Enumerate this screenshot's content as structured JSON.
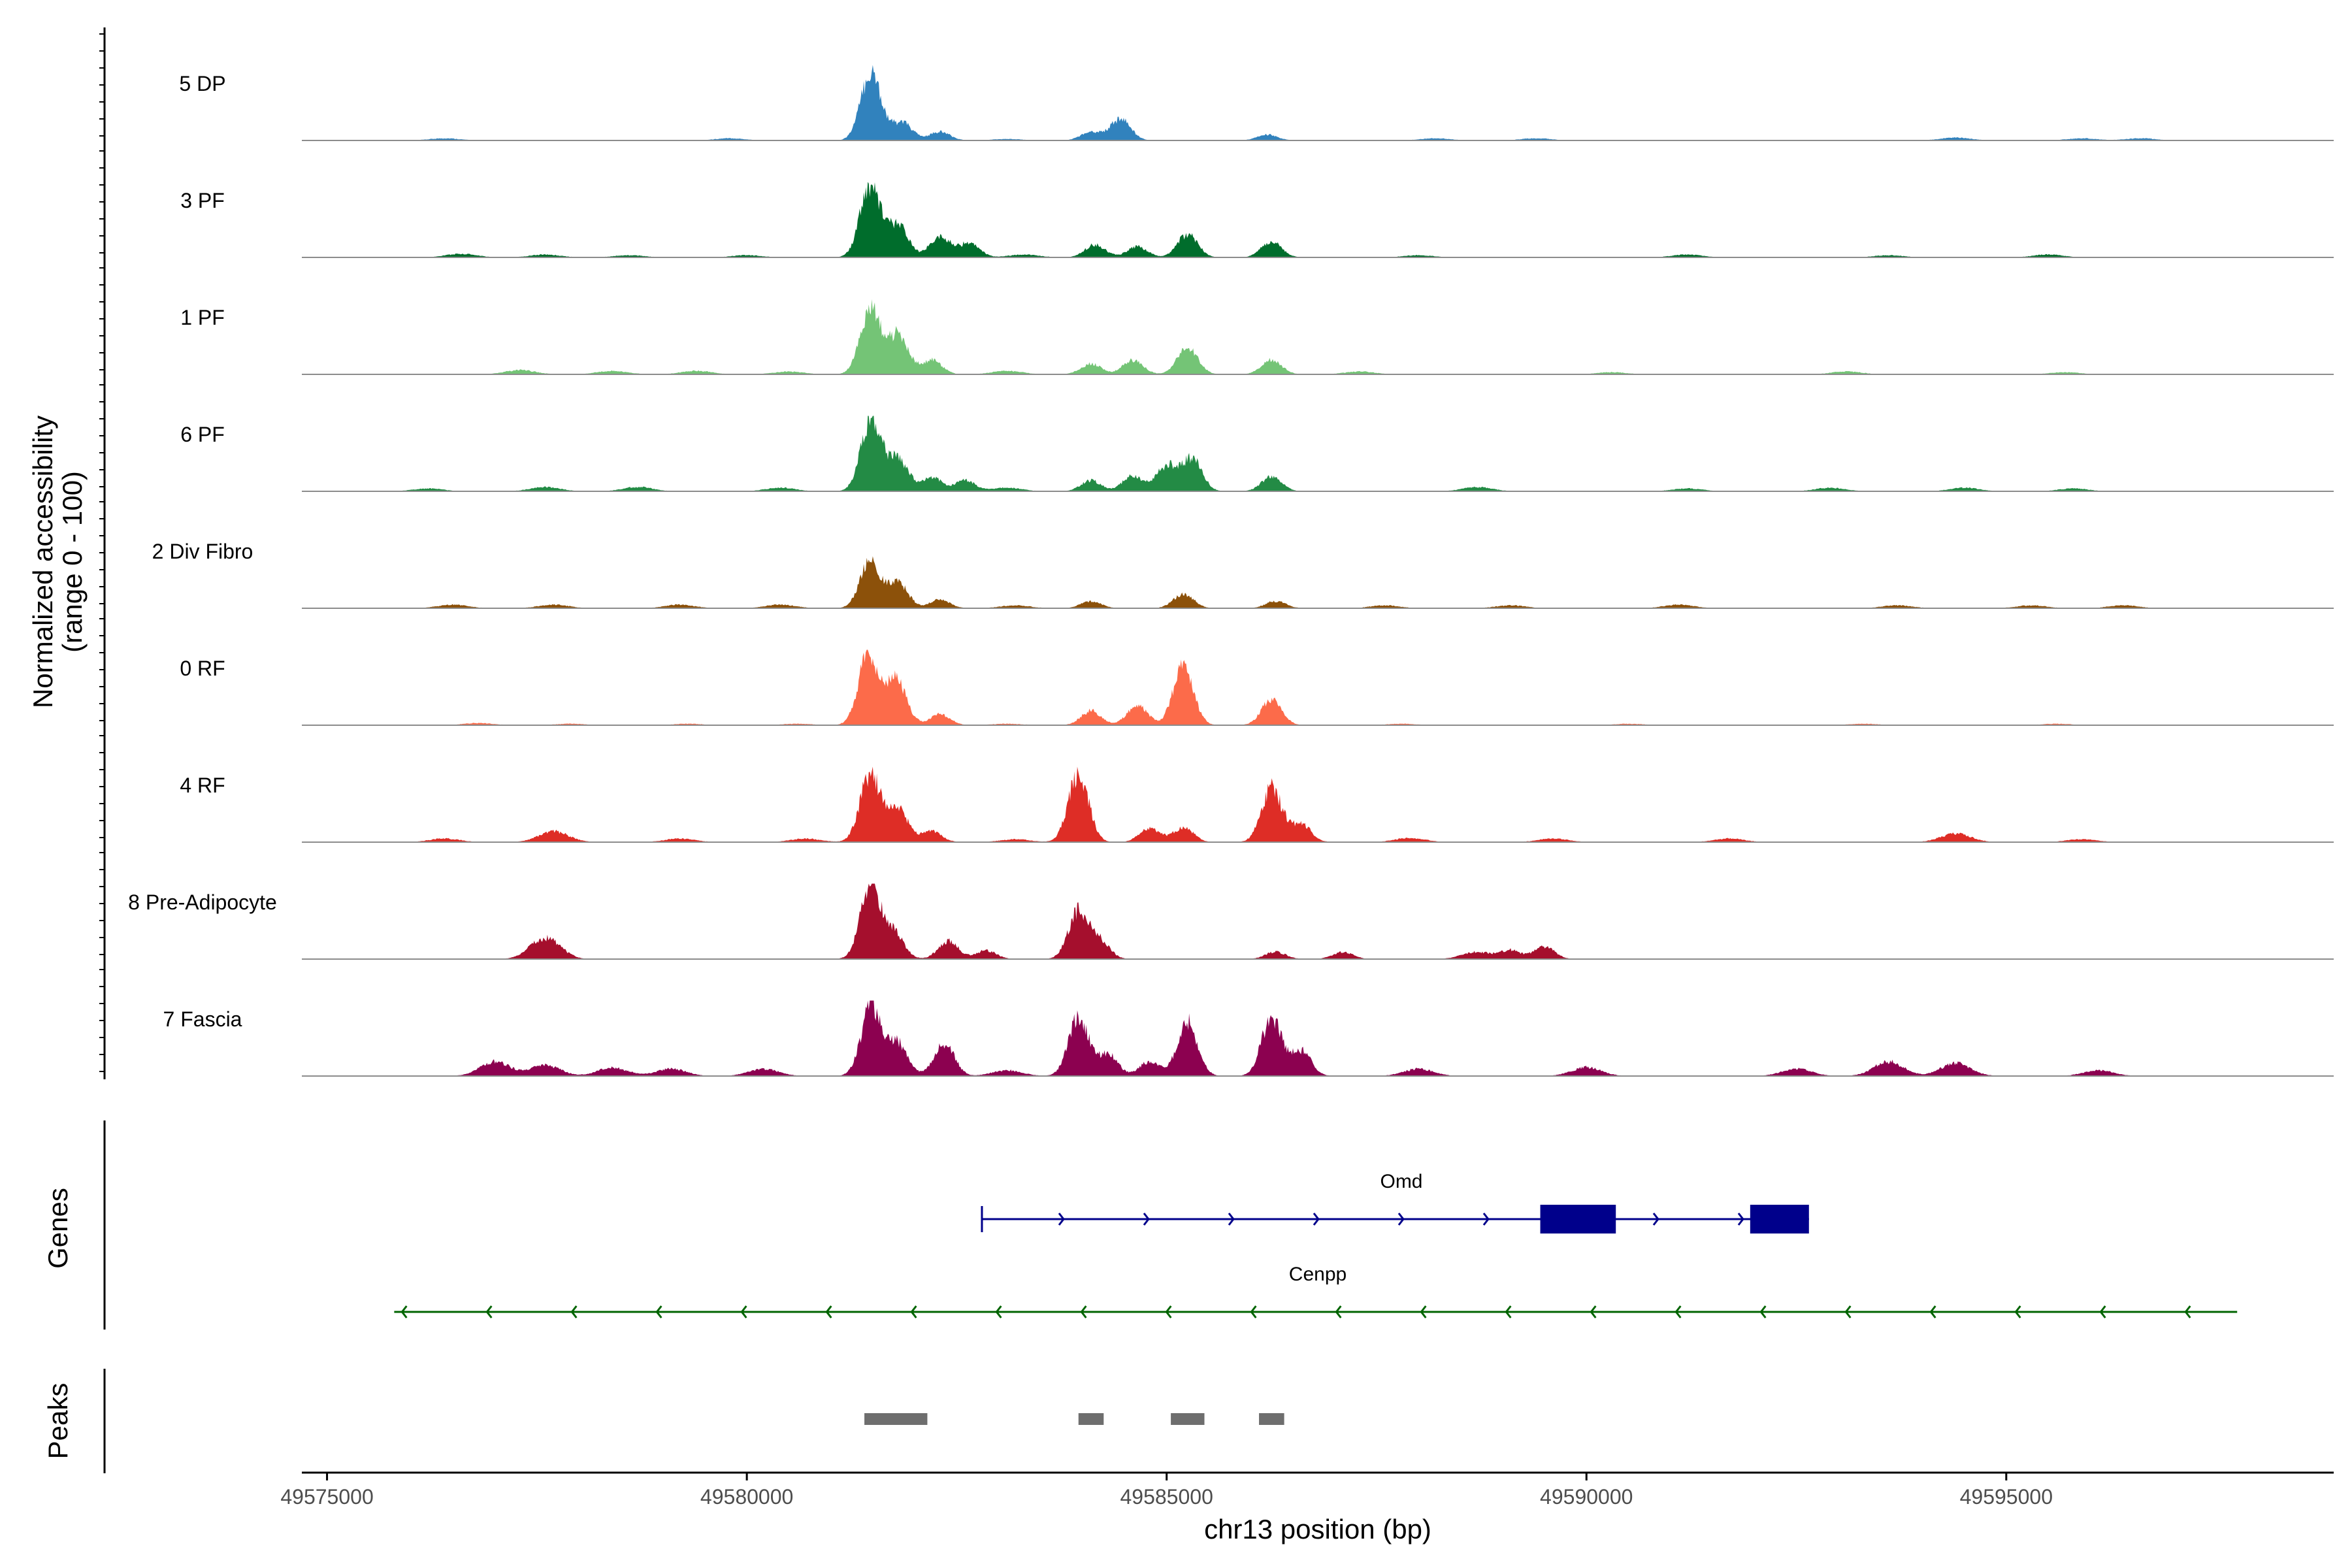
{
  "chart_data": {
    "type": "area",
    "title": "",
    "ylabel_line1": "Normalized accessibility",
    "ylabel_line2": "(range 0 - 100)",
    "xlabel": "chr13 position (bp)",
    "xlim": [
      49574700,
      49598900
    ],
    "xticks": [
      49575000,
      49580000,
      49585000,
      49590000,
      49595000
    ],
    "xtick_labels": [
      "49575000",
      "49580000",
      "49585000",
      "49590000",
      "49595000"
    ],
    "ylim": [
      0,
      100
    ],
    "tracks": [
      {
        "name": "5 DP",
        "color": "#3182bd",
        "peaks": [
          [
            49581480,
            0.95
          ],
          [
            49581850,
            0.25
          ],
          [
            49582300,
            0.12
          ],
          [
            49584450,
            0.3
          ],
          [
            49584100,
            0.12
          ],
          [
            49586200,
            0.08
          ]
        ],
        "noise": [
          [
            49576400,
            0.03
          ],
          [
            49579800,
            0.03
          ],
          [
            49583100,
            0.02
          ],
          [
            49588200,
            0.03
          ],
          [
            49589400,
            0.03
          ],
          [
            49594400,
            0.04
          ],
          [
            49595900,
            0.03
          ],
          [
            49596600,
            0.03
          ]
        ]
      },
      {
        "name": "3 PF",
        "color": "#006d2c",
        "peaks": [
          [
            49581470,
            1.0
          ],
          [
            49581800,
            0.45
          ],
          [
            49582300,
            0.3
          ],
          [
            49582650,
            0.2
          ],
          [
            49584150,
            0.18
          ],
          [
            49584650,
            0.15
          ],
          [
            49585250,
            0.32
          ],
          [
            49586250,
            0.22
          ]
        ],
        "noise": [
          [
            49576600,
            0.05
          ],
          [
            49577600,
            0.04
          ],
          [
            49578600,
            0.03
          ],
          [
            49580000,
            0.03
          ],
          [
            49583300,
            0.04
          ],
          [
            49588000,
            0.03
          ],
          [
            49591200,
            0.04
          ],
          [
            49593600,
            0.03
          ],
          [
            49595500,
            0.04
          ]
        ]
      },
      {
        "name": "1 PF",
        "color": "#74c476",
        "peaks": [
          [
            49581470,
            0.9
          ],
          [
            49581800,
            0.55
          ],
          [
            49582200,
            0.2
          ],
          [
            49584100,
            0.15
          ],
          [
            49584600,
            0.2
          ],
          [
            49585250,
            0.38
          ],
          [
            49586250,
            0.2
          ]
        ],
        "noise": [
          [
            49577300,
            0.06
          ],
          [
            49578400,
            0.05
          ],
          [
            49579400,
            0.05
          ],
          [
            49580500,
            0.04
          ],
          [
            49583100,
            0.05
          ],
          [
            49587300,
            0.04
          ],
          [
            49590300,
            0.03
          ],
          [
            49593100,
            0.04
          ],
          [
            49595700,
            0.03
          ]
        ]
      },
      {
        "name": "6 PF",
        "color": "#238b45",
        "peaks": [
          [
            49581480,
            1.0
          ],
          [
            49581800,
            0.45
          ],
          [
            49582200,
            0.2
          ],
          [
            49582600,
            0.15
          ],
          [
            49584100,
            0.15
          ],
          [
            49584600,
            0.22
          ],
          [
            49585000,
            0.35
          ],
          [
            49585300,
            0.45
          ],
          [
            49586250,
            0.2
          ]
        ],
        "noise": [
          [
            49576200,
            0.04
          ],
          [
            49577600,
            0.06
          ],
          [
            49578700,
            0.06
          ],
          [
            49580400,
            0.05
          ],
          [
            49583100,
            0.05
          ],
          [
            49588700,
            0.06
          ],
          [
            49591200,
            0.04
          ],
          [
            49592900,
            0.05
          ],
          [
            49594500,
            0.05
          ],
          [
            49595800,
            0.04
          ]
        ]
      },
      {
        "name": "2 Div Fibro",
        "color": "#8c510a",
        "peaks": [
          [
            49581470,
            0.65
          ],
          [
            49581800,
            0.35
          ],
          [
            49582300,
            0.12
          ],
          [
            49584100,
            0.1
          ],
          [
            49585200,
            0.2
          ],
          [
            49586300,
            0.1
          ]
        ],
        "noise": [
          [
            49576500,
            0.05
          ],
          [
            49577700,
            0.05
          ],
          [
            49579200,
            0.05
          ],
          [
            49580400,
            0.05
          ],
          [
            49583200,
            0.04
          ],
          [
            49587600,
            0.04
          ],
          [
            49589100,
            0.04
          ],
          [
            49591100,
            0.05
          ],
          [
            49593700,
            0.04
          ],
          [
            49595300,
            0.04
          ],
          [
            49596400,
            0.04
          ]
        ]
      },
      {
        "name": "0 RF",
        "color": "#fc6b4a",
        "peaks": [
          [
            49581450,
            1.0
          ],
          [
            49581780,
            0.65
          ],
          [
            49582300,
            0.15
          ],
          [
            49584100,
            0.2
          ],
          [
            49584650,
            0.28
          ],
          [
            49585200,
            0.8
          ],
          [
            49586250,
            0.35
          ]
        ],
        "noise": [
          [
            49576800,
            0.03
          ],
          [
            49577900,
            0.02
          ],
          [
            49579300,
            0.02
          ],
          [
            49580600,
            0.02
          ],
          [
            49583100,
            0.02
          ],
          [
            49587800,
            0.02
          ],
          [
            49590500,
            0.02
          ],
          [
            49593300,
            0.02
          ],
          [
            49595600,
            0.02
          ]
        ]
      },
      {
        "name": "4 RF",
        "color": "#de2d26",
        "peaks": [
          [
            49581470,
            0.95
          ],
          [
            49581800,
            0.45
          ],
          [
            49582200,
            0.15
          ],
          [
            49583950,
            0.95
          ],
          [
            49584800,
            0.2
          ],
          [
            49585200,
            0.2
          ],
          [
            49586250,
            0.75
          ],
          [
            49586600,
            0.25
          ]
        ],
        "noise": [
          [
            49576400,
            0.05
          ],
          [
            49577700,
            0.15
          ],
          [
            49579200,
            0.05
          ],
          [
            49580700,
            0.05
          ],
          [
            49583200,
            0.04
          ],
          [
            49587900,
            0.06
          ],
          [
            49589600,
            0.05
          ],
          [
            49591700,
            0.05
          ],
          [
            49594400,
            0.12
          ],
          [
            49595900,
            0.04
          ]
        ]
      },
      {
        "name": "8 Pre-Adipocyte",
        "color": "#a50f2d",
        "peaks": [
          [
            49581470,
            1.0
          ],
          [
            49581750,
            0.35
          ],
          [
            49582400,
            0.25
          ],
          [
            49582850,
            0.12
          ],
          [
            49583950,
            0.65
          ],
          [
            49584200,
            0.25
          ],
          [
            49586300,
            0.1
          ],
          [
            49587100,
            0.1
          ],
          [
            49589100,
            0.12
          ],
          [
            49589500,
            0.18
          ]
        ],
        "noise": [
          [
            49577600,
            0.3
          ],
          [
            49588700,
            0.1
          ]
        ]
      },
      {
        "name": "7 Fascia",
        "color": "#8c0150",
        "peaks": [
          [
            49581480,
            0.95
          ],
          [
            49581800,
            0.45
          ],
          [
            49582350,
            0.45
          ],
          [
            49583950,
            0.8
          ],
          [
            49584300,
            0.3
          ],
          [
            49584800,
            0.2
          ],
          [
            49585250,
            0.75
          ],
          [
            49586250,
            0.8
          ],
          [
            49586600,
            0.35
          ]
        ],
        "noise": [
          [
            49577000,
            0.2
          ],
          [
            49577600,
            0.15
          ],
          [
            49578400,
            0.12
          ],
          [
            49579100,
            0.1
          ],
          [
            49580200,
            0.1
          ],
          [
            49583100,
            0.08
          ],
          [
            49588000,
            0.1
          ],
          [
            49590000,
            0.12
          ],
          [
            49592500,
            0.1
          ],
          [
            49593600,
            0.2
          ],
          [
            49594400,
            0.18
          ],
          [
            49596100,
            0.08
          ]
        ]
      }
    ],
    "track_range": [
      49575800,
      49597700
    ],
    "genes_label": "Genes",
    "genes": [
      {
        "name": "Omd",
        "strand": "+",
        "start": 49582800,
        "end": 49592650,
        "color": "#00008b",
        "exons": [
          [
            49589450,
            49590350
          ],
          [
            49591950,
            49592650
          ]
        ]
      },
      {
        "name": "Cenpp",
        "strand": "-",
        "start": 49575800,
        "end": 49597750,
        "color": "#006400",
        "exons": []
      }
    ],
    "peaks_label": "Peaks",
    "peak_regions": [
      [
        49581400,
        49582150
      ],
      [
        49583950,
        49584250
      ],
      [
        49585050,
        49585450
      ],
      [
        49586100,
        49586400
      ]
    ],
    "peak_color": "#6e6e6e"
  }
}
